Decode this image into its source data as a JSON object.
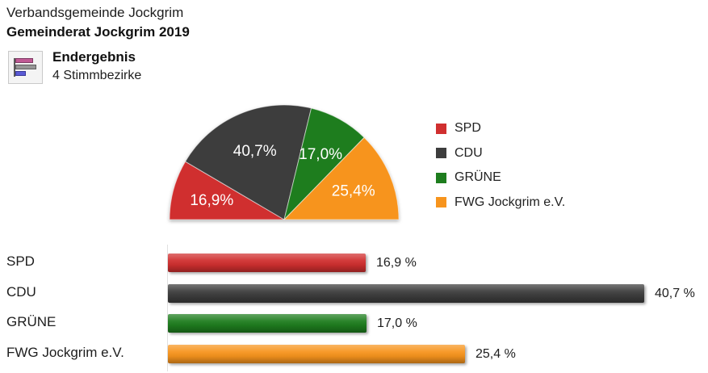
{
  "header": {
    "region_title": "Verbandsgemeinde Jockgrim",
    "election_title": "Gemeinderat Jockgrim 2019",
    "status": "Endergebnis",
    "districts": "4 Stimmbezirke",
    "icon": {
      "name": "result-bar-chart-icon",
      "bar_colors": [
        "#c05a94",
        "#969696",
        "#5b5bd6"
      ],
      "bar_border_colors": [
        "#7d3b63",
        "#5f5f5f",
        "#3a3a99"
      ]
    }
  },
  "colors": {
    "spd": "#d02f2f",
    "cdu": "#3d3d3d",
    "gruene": "#1e7d1e",
    "fwg": "#f7941d",
    "pie_label_text": "#ffffff",
    "text": "#1d1d1d"
  },
  "chart_data": [
    {
      "type": "pie",
      "variant": "semicircle",
      "categories": [
        "SPD",
        "CDU",
        "GRÜNE",
        "FWG Jockgrim e.V."
      ],
      "values": [
        16.9,
        40.7,
        17.0,
        25.4
      ],
      "slice_labels": [
        "16,9%",
        "40,7%",
        "17,0%",
        "25,4%"
      ],
      "colors": [
        "#d02f2f",
        "#3d3d3d",
        "#1e7d1e",
        "#f7941d"
      ],
      "legend": [
        "SPD",
        "CDU",
        "GRÜNE",
        "FWG Jockgrim e.V."
      ],
      "legend_position": "right",
      "start_angle_deg": 180,
      "end_angle_deg": 0
    },
    {
      "type": "bar",
      "orientation": "horizontal",
      "categories": [
        "SPD",
        "CDU",
        "GRÜNE",
        "FWG Jockgrim e.V."
      ],
      "values": [
        16.9,
        40.7,
        17.0,
        25.4
      ],
      "value_labels": [
        "16,9 %",
        "40,7 %",
        "17,0 %",
        "25,4 %"
      ],
      "colors": [
        "#d02f2f",
        "#3d3d3d",
        "#1e7d1e",
        "#f7941d"
      ],
      "xlim": [
        0,
        45.7
      ],
      "grid": false
    }
  ]
}
